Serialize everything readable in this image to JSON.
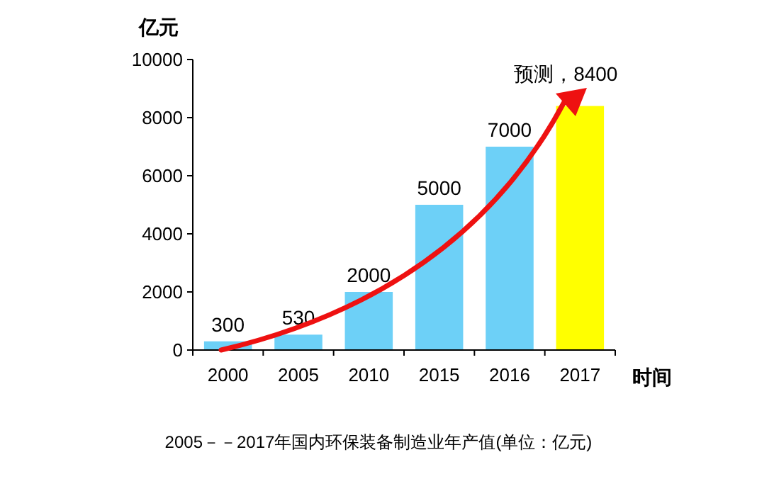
{
  "chart_data": {
    "type": "bar",
    "ylabel": "亿元",
    "xlabel": "时间",
    "categories": [
      "2000",
      "2005",
      "2010",
      "2015",
      "2016",
      "2017"
    ],
    "values": [
      300,
      530,
      2000,
      5000,
      7000,
      8400
    ],
    "colors": [
      "#6dd0f7",
      "#6dd0f7",
      "#6dd0f7",
      "#6dd0f7",
      "#6dd0f7",
      "#ffff00"
    ],
    "value_labels": [
      "300",
      "530",
      "2000",
      "5000",
      "7000",
      "预测，8400"
    ],
    "ylim": [
      0,
      10000
    ],
    "yticks": [
      0,
      2000,
      4000,
      6000,
      8000,
      10000
    ],
    "grid": false,
    "annotations": [
      "2005－－2017年国内环保装备制造业年产值(单位：亿元)"
    ]
  }
}
